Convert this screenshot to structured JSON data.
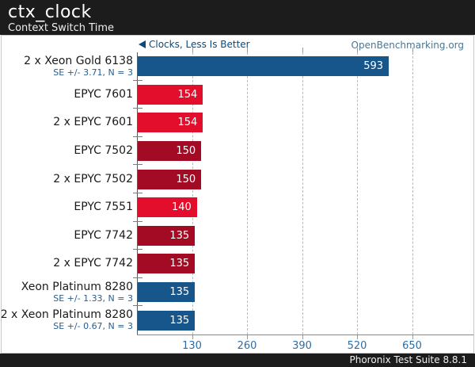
{
  "header": {
    "title": "ctx_clock",
    "subtitle": "Context Switch Time"
  },
  "meta": {
    "left_note": "Clocks, Less Is Better",
    "right_link": "OpenBenchmarking.org"
  },
  "footer": {
    "text": "Phoronix Test Suite 8.8.1"
  },
  "colors": {
    "blue": "#17568b",
    "red": "#e30d2c",
    "darkred": "#a30b24",
    "note_blue": "#084a7e",
    "link_color": "#4c7590",
    "tick_label_blue": "#2e6da4",
    "se_blue": "#2a5d8c"
  },
  "chart_data": {
    "type": "bar",
    "orientation": "horizontal",
    "title": "ctx_clock",
    "subtitle": "Context Switch Time",
    "value_label": "Clocks, Less Is Better",
    "lower_is_better": true,
    "x_ticks": [
      130,
      260,
      390,
      520,
      650
    ],
    "xlim": [
      0,
      790
    ],
    "grid": "dashed-vertical",
    "categories": [
      "2 x Xeon Gold 6138",
      "EPYC 7601",
      "2 x EPYC 7601",
      "EPYC 7502",
      "2 x EPYC 7502",
      "EPYC 7551",
      "EPYC 7742",
      "2 x EPYC 7742",
      "Xeon Platinum 8280",
      "2 x Xeon Platinum 8280"
    ],
    "values": [
      593,
      154,
      154,
      150,
      150,
      140,
      135,
      135,
      135,
      135
    ],
    "bars": [
      {
        "label": "2 x Xeon Gold 6138",
        "se_note": "SE +/- 3.71, N = 3",
        "value": 593,
        "color": "blue"
      },
      {
        "label": "EPYC 7601",
        "se_note": "",
        "value": 154,
        "color": "red"
      },
      {
        "label": "2 x EPYC 7601",
        "se_note": "",
        "value": 154,
        "color": "red"
      },
      {
        "label": "EPYC 7502",
        "se_note": "",
        "value": 150,
        "color": "darkred"
      },
      {
        "label": "2 x EPYC 7502",
        "se_note": "",
        "value": 150,
        "color": "darkred"
      },
      {
        "label": "EPYC 7551",
        "se_note": "",
        "value": 140,
        "color": "red"
      },
      {
        "label": "EPYC 7742",
        "se_note": "",
        "value": 135,
        "color": "darkred"
      },
      {
        "label": "2 x EPYC 7742",
        "se_note": "",
        "value": 135,
        "color": "darkred"
      },
      {
        "label": "Xeon Platinum 8280",
        "se_note": "SE +/- 1.33, N = 3",
        "value": 135,
        "color": "blue"
      },
      {
        "label": "2 x Xeon Platinum 8280",
        "se_note": "SE +/- 0.67, N = 3",
        "value": 135,
        "color": "blue"
      }
    ]
  }
}
